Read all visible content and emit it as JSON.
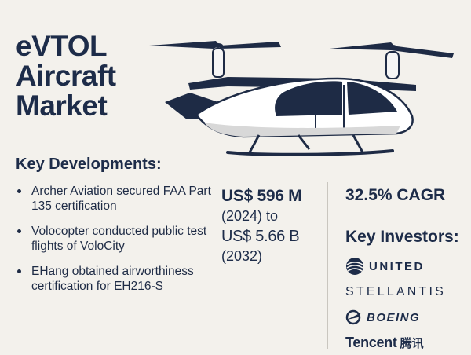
{
  "title": {
    "line1": "eVTOL",
    "line2": "Aircraft",
    "line3": "Market"
  },
  "developments": {
    "heading": "Key Developments:",
    "items": [
      "Archer Aviation secured FAA Part 135 certification",
      "Volocopter conducted public test flights of VoloCity",
      "EHang obtained airworthiness certification for EH216-S"
    ]
  },
  "market": {
    "value_start": "US$ 596 M",
    "year_start": "(2024) to",
    "value_end": "US$ 5.66 B",
    "year_end": "(2032)"
  },
  "cagr": "32.5% CAGR",
  "investors": {
    "heading": "Key Investors:",
    "logos": [
      "UNITED",
      "STELLANTIS",
      "BOEING",
      "Tencent",
      "腾讯"
    ]
  },
  "colors": {
    "navy": "#1d2c49",
    "background": "#f3f1ec"
  }
}
